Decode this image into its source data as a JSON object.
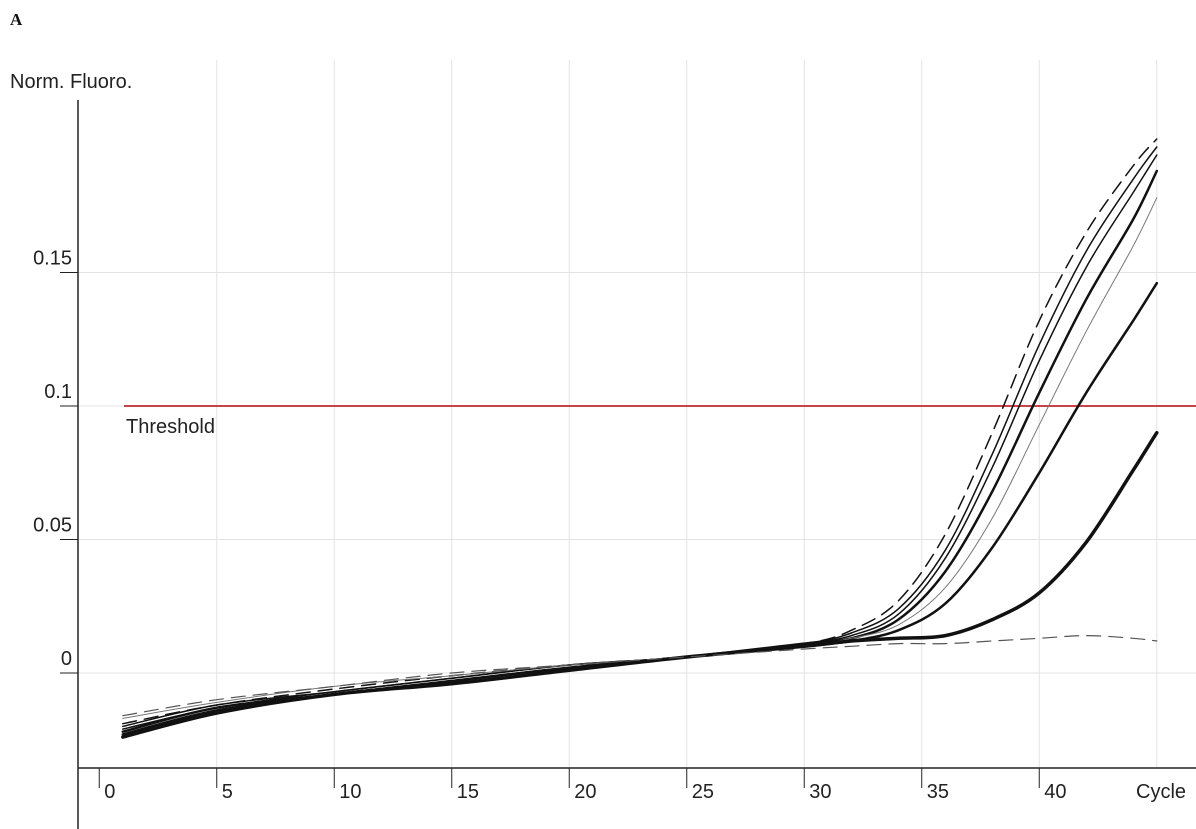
{
  "panel_label": "A",
  "chart_data": {
    "type": "line",
    "title": "",
    "ylabel": "Norm. Fluoro.",
    "xlabel": "Cycle",
    "xlim": [
      0,
      45
    ],
    "ylim": [
      -0.035,
      0.2
    ],
    "x_ticks": [
      "0",
      "5",
      "10",
      "15",
      "20",
      "25",
      "30",
      "35",
      "40"
    ],
    "y_ticks": [
      "0",
      "0.05",
      "0.1",
      "0.15"
    ],
    "grid": true,
    "threshold": {
      "label": "Threshold",
      "value": 0.1,
      "color": "#c0282f"
    },
    "series": [
      {
        "values": [
          [
            1,
            -0.019
          ],
          [
            5,
            -0.012
          ],
          [
            10,
            -0.006
          ],
          [
            15,
            -0.001
          ],
          [
            20,
            0.003
          ],
          [
            25,
            0.006
          ],
          [
            30,
            0.011
          ],
          [
            32,
            0.016
          ],
          [
            34,
            0.027
          ],
          [
            36,
            0.052
          ],
          [
            38,
            0.09
          ],
          [
            40,
            0.132
          ],
          [
            42,
            0.165
          ],
          [
            44,
            0.19
          ],
          [
            45,
            0.2
          ]
        ],
        "width": 1.5,
        "dash": "14 8"
      },
      {
        "values": [
          [
            1,
            -0.02
          ],
          [
            5,
            -0.012
          ],
          [
            10,
            -0.007
          ],
          [
            15,
            -0.002
          ],
          [
            20,
            0.003
          ],
          [
            25,
            0.006
          ],
          [
            30,
            0.011
          ],
          [
            32,
            0.015
          ],
          [
            34,
            0.024
          ],
          [
            36,
            0.046
          ],
          [
            38,
            0.082
          ],
          [
            40,
            0.123
          ],
          [
            42,
            0.158
          ],
          [
            44,
            0.185
          ],
          [
            45,
            0.197
          ]
        ],
        "width": 1.5
      },
      {
        "values": [
          [
            1,
            -0.021
          ],
          [
            5,
            -0.013
          ],
          [
            10,
            -0.007
          ],
          [
            15,
            -0.002
          ],
          [
            20,
            0.003
          ],
          [
            25,
            0.006
          ],
          [
            30,
            0.011
          ],
          [
            32,
            0.014
          ],
          [
            34,
            0.022
          ],
          [
            36,
            0.043
          ],
          [
            38,
            0.077
          ],
          [
            40,
            0.117
          ],
          [
            42,
            0.152
          ],
          [
            44,
            0.18
          ],
          [
            45,
            0.194
          ]
        ],
        "width": 1.5
      },
      {
        "values": [
          [
            1,
            -0.022
          ],
          [
            5,
            -0.013
          ],
          [
            10,
            -0.008
          ],
          [
            15,
            -0.003
          ],
          [
            20,
            0.002
          ],
          [
            25,
            0.006
          ],
          [
            30,
            0.011
          ],
          [
            32,
            0.013
          ],
          [
            34,
            0.02
          ],
          [
            36,
            0.038
          ],
          [
            38,
            0.068
          ],
          [
            40,
            0.105
          ],
          [
            42,
            0.14
          ],
          [
            44,
            0.17
          ],
          [
            45,
            0.188
          ]
        ],
        "width": 2.5
      },
      {
        "values": [
          [
            1,
            -0.017
          ],
          [
            5,
            -0.011
          ],
          [
            10,
            -0.005
          ],
          [
            15,
            -0.001
          ],
          [
            20,
            0.003
          ],
          [
            25,
            0.006
          ],
          [
            30,
            0.01
          ],
          [
            32,
            0.013
          ],
          [
            34,
            0.018
          ],
          [
            36,
            0.032
          ],
          [
            38,
            0.058
          ],
          [
            40,
            0.093
          ],
          [
            42,
            0.128
          ],
          [
            44,
            0.16
          ],
          [
            45,
            0.178
          ]
        ],
        "width": 1,
        "color": "#777777"
      },
      {
        "values": [
          [
            1,
            -0.023
          ],
          [
            5,
            -0.014
          ],
          [
            10,
            -0.008
          ],
          [
            15,
            -0.003
          ],
          [
            20,
            0.002
          ],
          [
            25,
            0.006
          ],
          [
            30,
            0.01
          ],
          [
            32,
            0.012
          ],
          [
            34,
            0.016
          ],
          [
            36,
            0.026
          ],
          [
            38,
            0.047
          ],
          [
            40,
            0.075
          ],
          [
            42,
            0.105
          ],
          [
            44,
            0.132
          ],
          [
            45,
            0.146
          ]
        ],
        "width": 2.5
      },
      {
        "values": [
          [
            1,
            -0.024
          ],
          [
            5,
            -0.015
          ],
          [
            10,
            -0.008
          ],
          [
            15,
            -0.004
          ],
          [
            20,
            0.001
          ],
          [
            25,
            0.006
          ],
          [
            30,
            0.01
          ],
          [
            32,
            0.012
          ],
          [
            34,
            0.013
          ],
          [
            36,
            0.014
          ],
          [
            38,
            0.02
          ],
          [
            40,
            0.03
          ],
          [
            42,
            0.049
          ],
          [
            44,
            0.076
          ],
          [
            45,
            0.09
          ]
        ],
        "width": 3.5
      },
      {
        "values": [
          [
            1,
            -0.016
          ],
          [
            5,
            -0.01
          ],
          [
            10,
            -0.005
          ],
          [
            15,
            0.0
          ],
          [
            20,
            0.003
          ],
          [
            25,
            0.006
          ],
          [
            30,
            0.009
          ],
          [
            32,
            0.01
          ],
          [
            34,
            0.011
          ],
          [
            36,
            0.011
          ],
          [
            38,
            0.012
          ],
          [
            40,
            0.013
          ],
          [
            42,
            0.014
          ],
          [
            44,
            0.013
          ],
          [
            45,
            0.012
          ]
        ],
        "width": 1.2,
        "dash": "14 8",
        "color": "#555555"
      }
    ]
  }
}
